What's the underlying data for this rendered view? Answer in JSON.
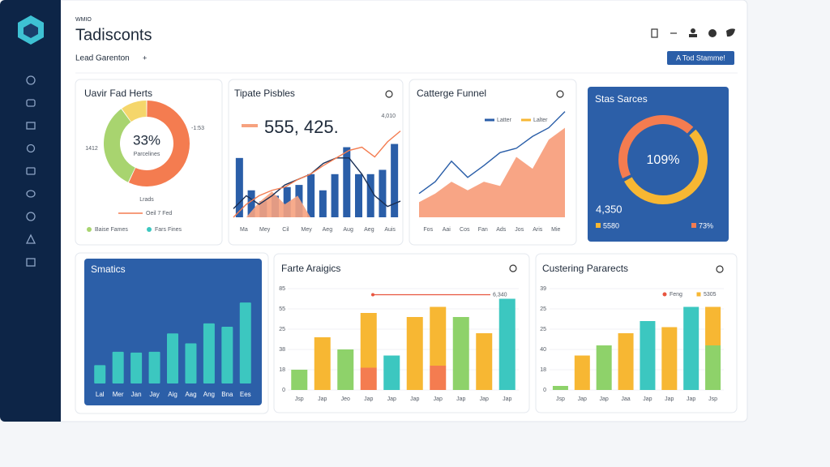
{
  "header": {
    "overline": "WMIO",
    "title": "Tadisconts",
    "subtitle": "Lead Garenton",
    "subtitle_action": "+",
    "button": "A Tod Stamme!"
  },
  "chart_data": [
    {
      "type": "donut",
      "title": "Uavir Fad Herts",
      "center_label": "33%",
      "center_sublabel": "Parcelines",
      "annotations": [
        "1412",
        "-1:53"
      ],
      "footer": "Lrads",
      "footer_legend": "Oeil 7 Fed",
      "values": [
        57,
        33,
        10
      ],
      "colors": [
        "#f47c50",
        "#a8d46f",
        "#f5d66b"
      ],
      "legend": [
        {
          "name": "Baise Fames",
          "color": "#a8d46f"
        },
        {
          "name": "Fars Fines",
          "color": "#3cc7c0"
        }
      ]
    },
    {
      "type": "combo",
      "title": "Tipate Pisbles",
      "kpi": "555, 425.",
      "kpi_note": "4,010",
      "x_labels": [
        "Ma",
        "Mey",
        "Cil",
        "Mey",
        "Aeg",
        "Aug",
        "Aeg",
        "Auis"
      ],
      "ylim": [
        0,
        100
      ],
      "series": [
        {
          "kind": "bar",
          "color": "#2a5ea8",
          "values": [
            55,
            25,
            15,
            20,
            28,
            30,
            40,
            25,
            40,
            65,
            40,
            40,
            44,
            68
          ]
        },
        {
          "kind": "area",
          "color": "#f6a27f",
          "values": [
            0,
            0,
            14,
            24,
            12,
            20,
            0,
            0,
            0,
            0,
            0,
            0,
            0,
            0
          ]
        },
        {
          "kind": "line",
          "color": "#1a2f55",
          "values": [
            8,
            20,
            12,
            20,
            30,
            35,
            40,
            50,
            55,
            55,
            40,
            20,
            10,
            15
          ]
        },
        {
          "kind": "line",
          "color": "#f47c50",
          "values": [
            0,
            12,
            20,
            25,
            28,
            35,
            40,
            48,
            55,
            62,
            65,
            56,
            70,
            80
          ]
        }
      ]
    },
    {
      "type": "area",
      "title": "Catterge Funnel",
      "x_labels": [
        "Fos",
        "Aai",
        "Cos",
        "Fan",
        "Ads",
        "Jos",
        "Aris",
        "Mie"
      ],
      "ylim": [
        0,
        100
      ],
      "legend": [
        {
          "name": "Latter",
          "color": "#2a5ea8"
        },
        {
          "name": "Lalter",
          "color": "#f7b733"
        }
      ],
      "series": [
        {
          "kind": "area",
          "color": "#f79b78",
          "values": [
            14,
            22,
            33,
            25,
            33,
            29,
            56,
            45,
            72,
            83
          ]
        },
        {
          "kind": "line",
          "color": "#2a5ea8",
          "values": [
            22,
            33,
            52,
            37,
            48,
            60,
            64,
            75,
            83,
            98
          ]
        }
      ]
    },
    {
      "type": "ring",
      "title": "Stas Sarces",
      "center_label": "109%",
      "total": "4,350",
      "values": [
        45,
        55
      ],
      "colors": [
        "#f47c50",
        "#f7b733"
      ],
      "legend": [
        {
          "name": "5580",
          "color": "#f7b733"
        },
        {
          "name": "73%",
          "color": "#f47c50"
        }
      ]
    },
    {
      "type": "bar",
      "title": "Smatics",
      "categories": [
        "Lal",
        "Mer",
        "Jan",
        "Jay",
        "Aig",
        "Aag",
        "Ang",
        "Bna",
        "Ees"
      ],
      "values": [
        22,
        38,
        37,
        38,
        60,
        48,
        72,
        68,
        97
      ],
      "color": "#3cc7c0",
      "ylim": [
        0,
        100
      ]
    },
    {
      "type": "stacked_bar",
      "title": "Farte Araigics",
      "categories": [
        "Jsp",
        "Jap",
        "Jeo",
        "Jap",
        "Jap",
        "Jap",
        "Jap",
        "Jap",
        "Jap",
        "Jap"
      ],
      "ylim": [
        0,
        50
      ],
      "yticks": [
        0,
        {
          "value": 10,
          "label": "18"
        },
        {
          "value": 20,
          "label": "38"
        },
        {
          "value": 30,
          "label": "25"
        },
        {
          "value": 40,
          "label": "55"
        },
        {
          "value": 50,
          "label": "85"
        }
      ],
      "grid": true,
      "reference": {
        "value": 47,
        "label": "6,340",
        "color": "#e8553f"
      },
      "series": [
        {
          "colors": [
            "#8ed26a",
            "#f7b733",
            "#8ed26a",
            "#f47c50",
            "#3cc7c0",
            "#f7b733",
            "#f47c50",
            "#8ed26a",
            "#f7b733",
            "#3cc7c0"
          ],
          "values": [
            10,
            26,
            20,
            11,
            17,
            36,
            12,
            36,
            28,
            45
          ]
        },
        {
          "color": "#f7b733",
          "values": [
            null,
            null,
            null,
            27,
            null,
            null,
            29,
            null,
            null,
            null
          ]
        }
      ]
    },
    {
      "type": "stacked_bar",
      "title": "Custering Pararects",
      "categories": [
        "Jsp",
        "Jap",
        "Jap",
        "Jaa",
        "Jap",
        "Jap",
        "Jap",
        "Jsp"
      ],
      "ylim": [
        0,
        50
      ],
      "yticks": [
        0,
        {
          "value": 10,
          "label": "18"
        },
        {
          "value": 20,
          "label": "40"
        },
        {
          "value": 30,
          "label": "25"
        },
        {
          "value": 40,
          "label": "25"
        },
        {
          "value": 50,
          "label": "39"
        }
      ],
      "grid": true,
      "legend": [
        {
          "name": "Feng",
          "color": "#e8553f"
        },
        {
          "name": "5305",
          "color": "#f7b733"
        }
      ],
      "series": [
        {
          "colors": [
            "#8ed26a",
            "#f7b733",
            "#8ed26a",
            "#f7b733",
            "#3cc7c0",
            "#f7b733",
            "#3cc7c0",
            "#8ed26a"
          ],
          "values": [
            2,
            17,
            22,
            28,
            34,
            31,
            41,
            22
          ]
        },
        {
          "color": "#f7b733",
          "values": [
            null,
            null,
            null,
            null,
            null,
            null,
            null,
            19
          ]
        }
      ]
    }
  ]
}
